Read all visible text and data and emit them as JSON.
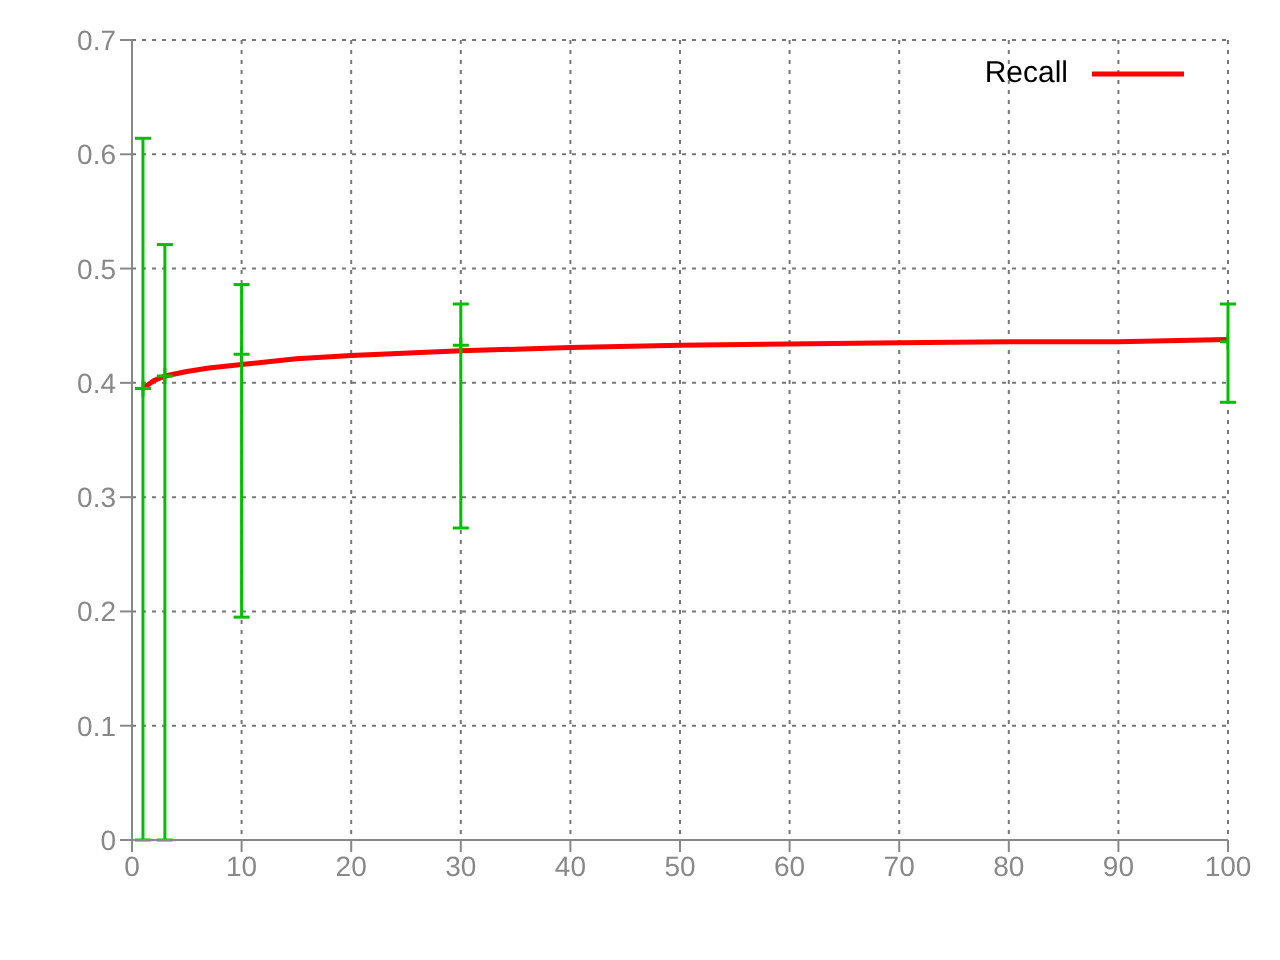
{
  "chart_data": {
    "type": "line",
    "xlim": [
      0,
      100
    ],
    "xticks": [
      0,
      10,
      20,
      30,
      40,
      50,
      60,
      70,
      80,
      90,
      100
    ],
    "ylim": [
      0,
      0.7
    ],
    "yticks": [
      0,
      0.1,
      0.2,
      0.3,
      0.4,
      0.5,
      0.6,
      0.7
    ],
    "grid": true,
    "legend": "top right",
    "series": [
      {
        "name": "Recall",
        "color": "#ff0000",
        "marker": "none",
        "x": [
          1,
          2,
          3,
          5,
          7,
          10,
          15,
          20,
          30,
          40,
          50,
          60,
          70,
          80,
          90,
          100
        ],
        "values": [
          0.395,
          0.402,
          0.406,
          0.41,
          0.413,
          0.416,
          0.421,
          0.424,
          0.428,
          0.431,
          0.433,
          0.434,
          0.435,
          0.436,
          0.436,
          0.438
        ]
      },
      {
        "type": "scatter",
        "color": "#00c000",
        "x": [
          1,
          3,
          10,
          30,
          100
        ],
        "values": [
          0.395,
          0.406,
          0.425,
          0.433,
          0.436
        ],
        "errors": [
          [
            0,
            0.614
          ],
          [
            0,
            0.521
          ],
          [
            0.195,
            0.486
          ],
          [
            0.273,
            0.469
          ],
          [
            0.383,
            0.469
          ]
        ]
      }
    ]
  }
}
